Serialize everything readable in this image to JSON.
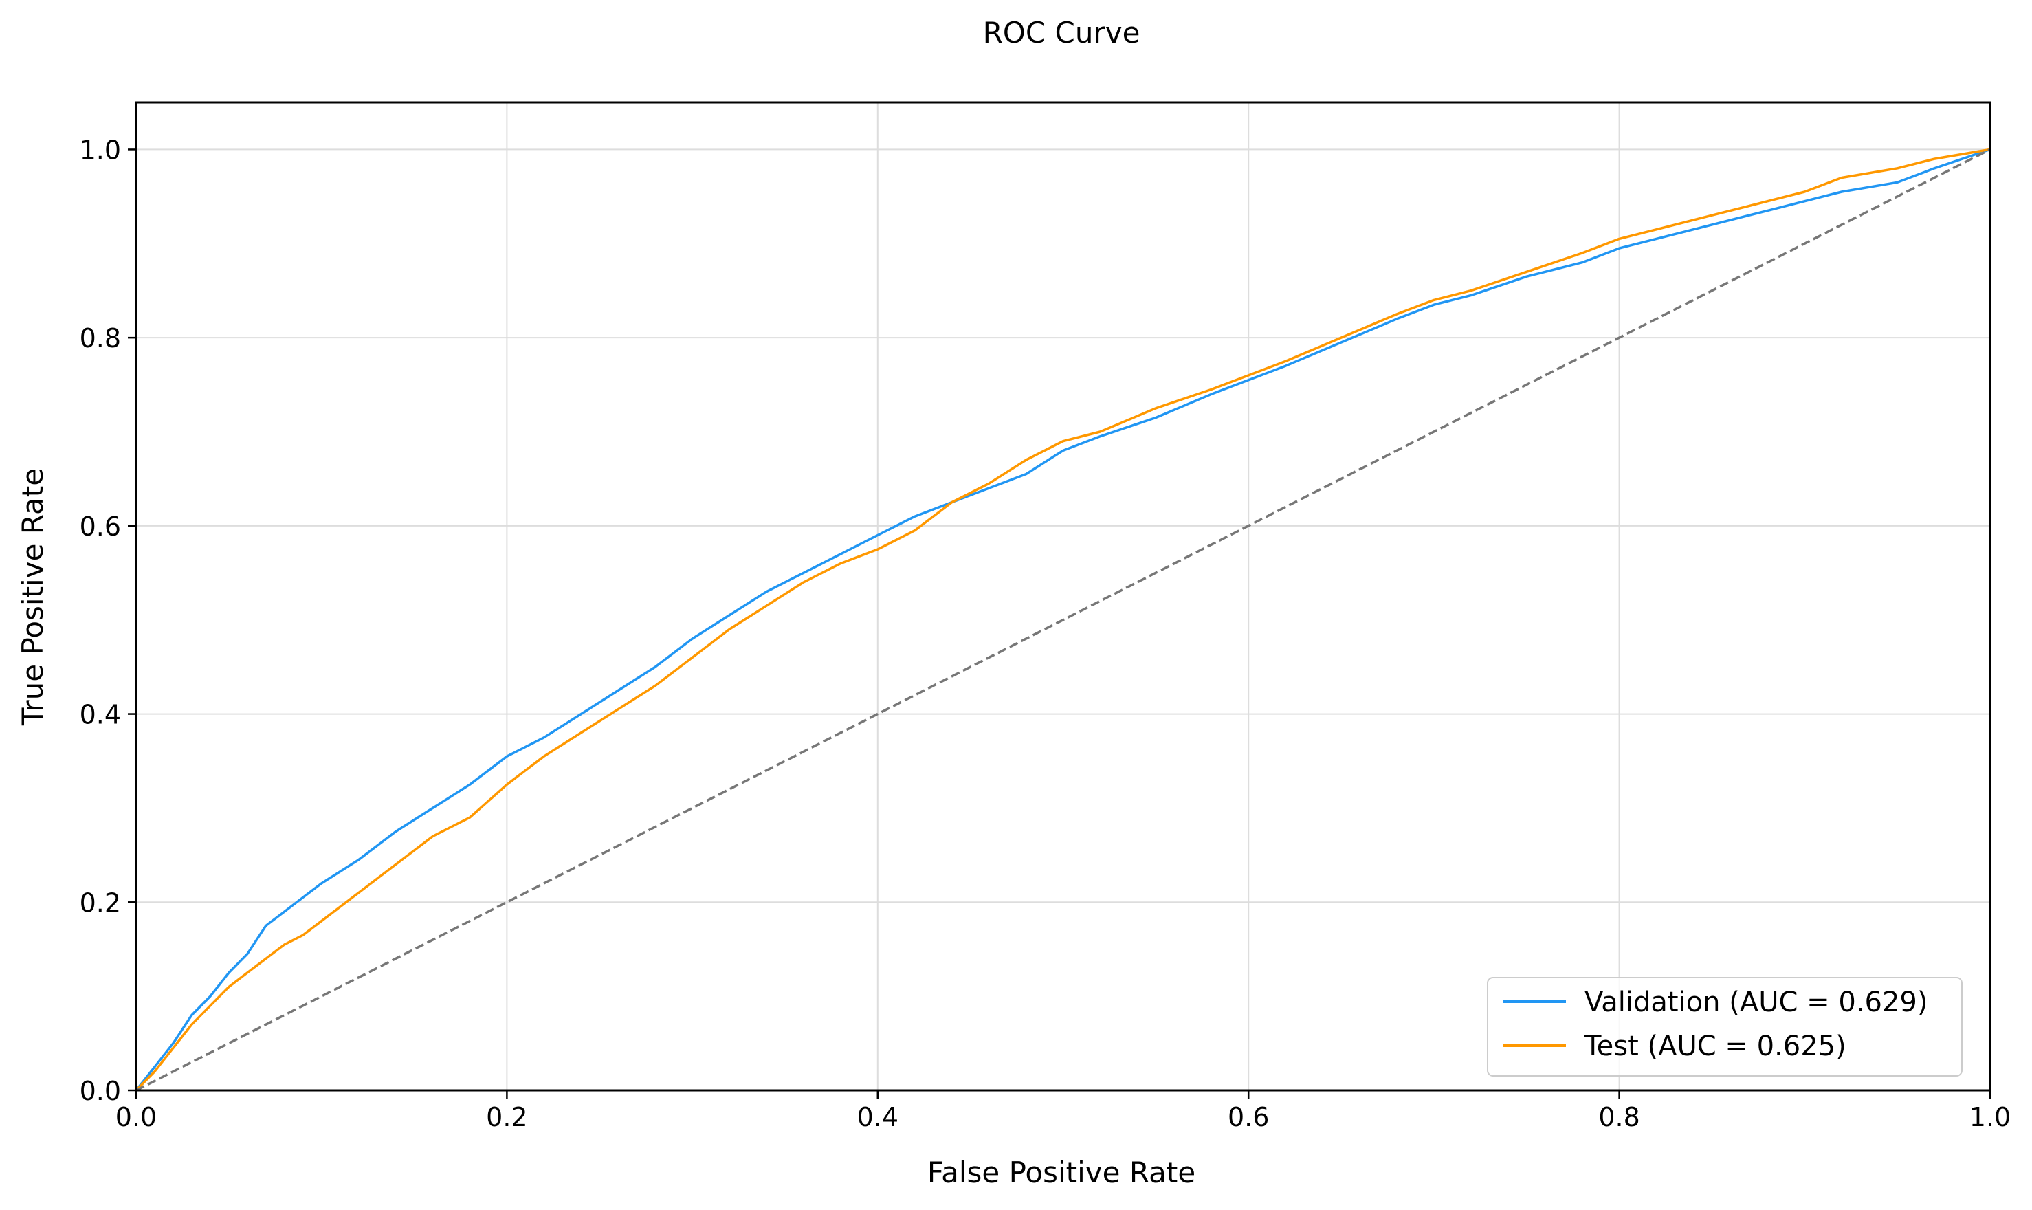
{
  "chart_data": {
    "type": "line",
    "title": "ROC Curve",
    "xlabel": "False Positive Rate",
    "ylabel": "True Positive Rate",
    "xlim": [
      0.0,
      1.0
    ],
    "ylim": [
      0.0,
      1.05
    ],
    "xticks": [
      0.0,
      0.2,
      0.4,
      0.6,
      0.8,
      1.0
    ],
    "yticks": [
      0.0,
      0.2,
      0.4,
      0.6,
      0.8,
      1.0
    ],
    "xtick_labels": [
      "0.0",
      "0.2",
      "0.4",
      "0.6",
      "0.8",
      "1.0"
    ],
    "ytick_labels": [
      "0.0",
      "0.2",
      "0.4",
      "0.6",
      "0.8",
      "1.0"
    ],
    "grid": true,
    "legend_position": "lower-right",
    "series": [
      {
        "name": "Validation (AUC = 0.629)",
        "color": "#2196f3",
        "style": "solid",
        "x": [
          0.0,
          0.01,
          0.02,
          0.03,
          0.04,
          0.05,
          0.06,
          0.07,
          0.08,
          0.09,
          0.1,
          0.12,
          0.14,
          0.16,
          0.18,
          0.2,
          0.22,
          0.24,
          0.26,
          0.28,
          0.3,
          0.32,
          0.34,
          0.36,
          0.38,
          0.4,
          0.42,
          0.44,
          0.46,
          0.48,
          0.5,
          0.52,
          0.55,
          0.58,
          0.6,
          0.62,
          0.65,
          0.68,
          0.7,
          0.72,
          0.75,
          0.78,
          0.8,
          0.82,
          0.85,
          0.88,
          0.9,
          0.92,
          0.95,
          0.97,
          1.0
        ],
        "y": [
          0.0,
          0.025,
          0.05,
          0.08,
          0.1,
          0.125,
          0.145,
          0.175,
          0.19,
          0.205,
          0.22,
          0.245,
          0.275,
          0.3,
          0.325,
          0.355,
          0.375,
          0.4,
          0.425,
          0.45,
          0.48,
          0.505,
          0.53,
          0.55,
          0.57,
          0.59,
          0.61,
          0.625,
          0.64,
          0.655,
          0.68,
          0.695,
          0.715,
          0.74,
          0.755,
          0.77,
          0.795,
          0.82,
          0.835,
          0.845,
          0.865,
          0.88,
          0.895,
          0.905,
          0.92,
          0.935,
          0.945,
          0.955,
          0.965,
          0.98,
          1.0
        ]
      },
      {
        "name": "Test (AUC = 0.625)",
        "color": "#ff9800",
        "style": "solid",
        "x": [
          0.0,
          0.01,
          0.02,
          0.03,
          0.04,
          0.05,
          0.06,
          0.07,
          0.08,
          0.09,
          0.1,
          0.12,
          0.14,
          0.16,
          0.18,
          0.2,
          0.22,
          0.24,
          0.26,
          0.28,
          0.3,
          0.32,
          0.34,
          0.36,
          0.38,
          0.4,
          0.42,
          0.44,
          0.46,
          0.48,
          0.5,
          0.52,
          0.55,
          0.58,
          0.6,
          0.62,
          0.65,
          0.68,
          0.7,
          0.72,
          0.75,
          0.78,
          0.8,
          0.82,
          0.85,
          0.88,
          0.9,
          0.92,
          0.95,
          0.97,
          1.0
        ],
        "y": [
          0.0,
          0.02,
          0.045,
          0.07,
          0.09,
          0.11,
          0.125,
          0.14,
          0.155,
          0.165,
          0.18,
          0.21,
          0.24,
          0.27,
          0.29,
          0.325,
          0.355,
          0.38,
          0.405,
          0.43,
          0.46,
          0.49,
          0.515,
          0.54,
          0.56,
          0.575,
          0.595,
          0.625,
          0.645,
          0.67,
          0.69,
          0.7,
          0.725,
          0.745,
          0.76,
          0.775,
          0.8,
          0.825,
          0.84,
          0.85,
          0.87,
          0.89,
          0.905,
          0.915,
          0.93,
          0.945,
          0.955,
          0.97,
          0.98,
          0.99,
          1.0
        ]
      },
      {
        "name": "",
        "color": "#777777",
        "style": "dashed",
        "x": [
          0.0,
          1.0
        ],
        "y": [
          0.0,
          1.0
        ]
      }
    ]
  }
}
